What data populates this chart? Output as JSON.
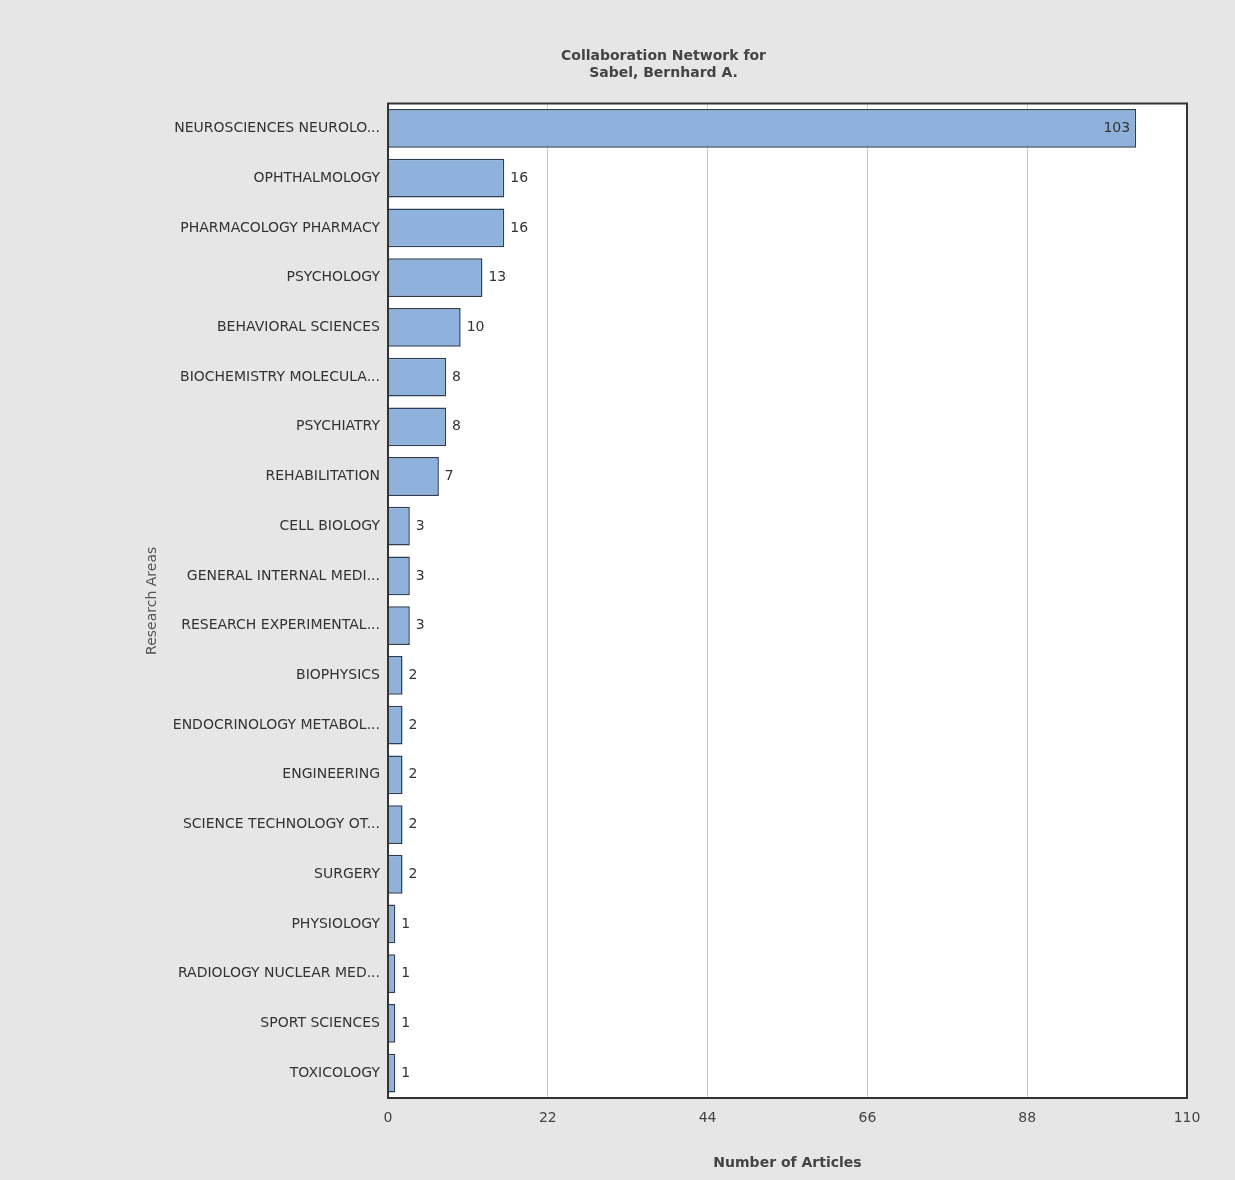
{
  "chart_data": {
    "type": "bar",
    "orientation": "horizontal",
    "title": "Collaboration Network for\nSabel, Bernhard A.",
    "xlabel": "Number of Articles",
    "ylabel": "Research Areas",
    "categories": [
      "NEUROSCIENCES NEUROLO...",
      "OPHTHALMOLOGY",
      "PHARMACOLOGY PHARMACY",
      "PSYCHOLOGY",
      "BEHAVIORAL SCIENCES",
      "BIOCHEMISTRY MOLECULA...",
      "PSYCHIATRY",
      "REHABILITATION",
      "CELL BIOLOGY",
      "GENERAL INTERNAL MEDI...",
      "RESEARCH EXPERIMENTAL...",
      "BIOPHYSICS",
      "ENDOCRINOLOGY METABOL...",
      "ENGINEERING",
      "SCIENCE TECHNOLOGY OT...",
      "SURGERY",
      "PHYSIOLOGY",
      "RADIOLOGY NUCLEAR MED...",
      "SPORT SCIENCES",
      "TOXICOLOGY"
    ],
    "values": [
      103,
      16,
      16,
      13,
      10,
      8,
      8,
      7,
      3,
      3,
      3,
      2,
      2,
      2,
      2,
      2,
      1,
      1,
      1,
      1
    ],
    "color": "#8fb2dc",
    "xlim": [
      0,
      110
    ],
    "xticks": [
      0,
      22,
      44,
      66,
      88,
      110
    ],
    "grid": "x",
    "data_labels": true,
    "legend": false
  }
}
